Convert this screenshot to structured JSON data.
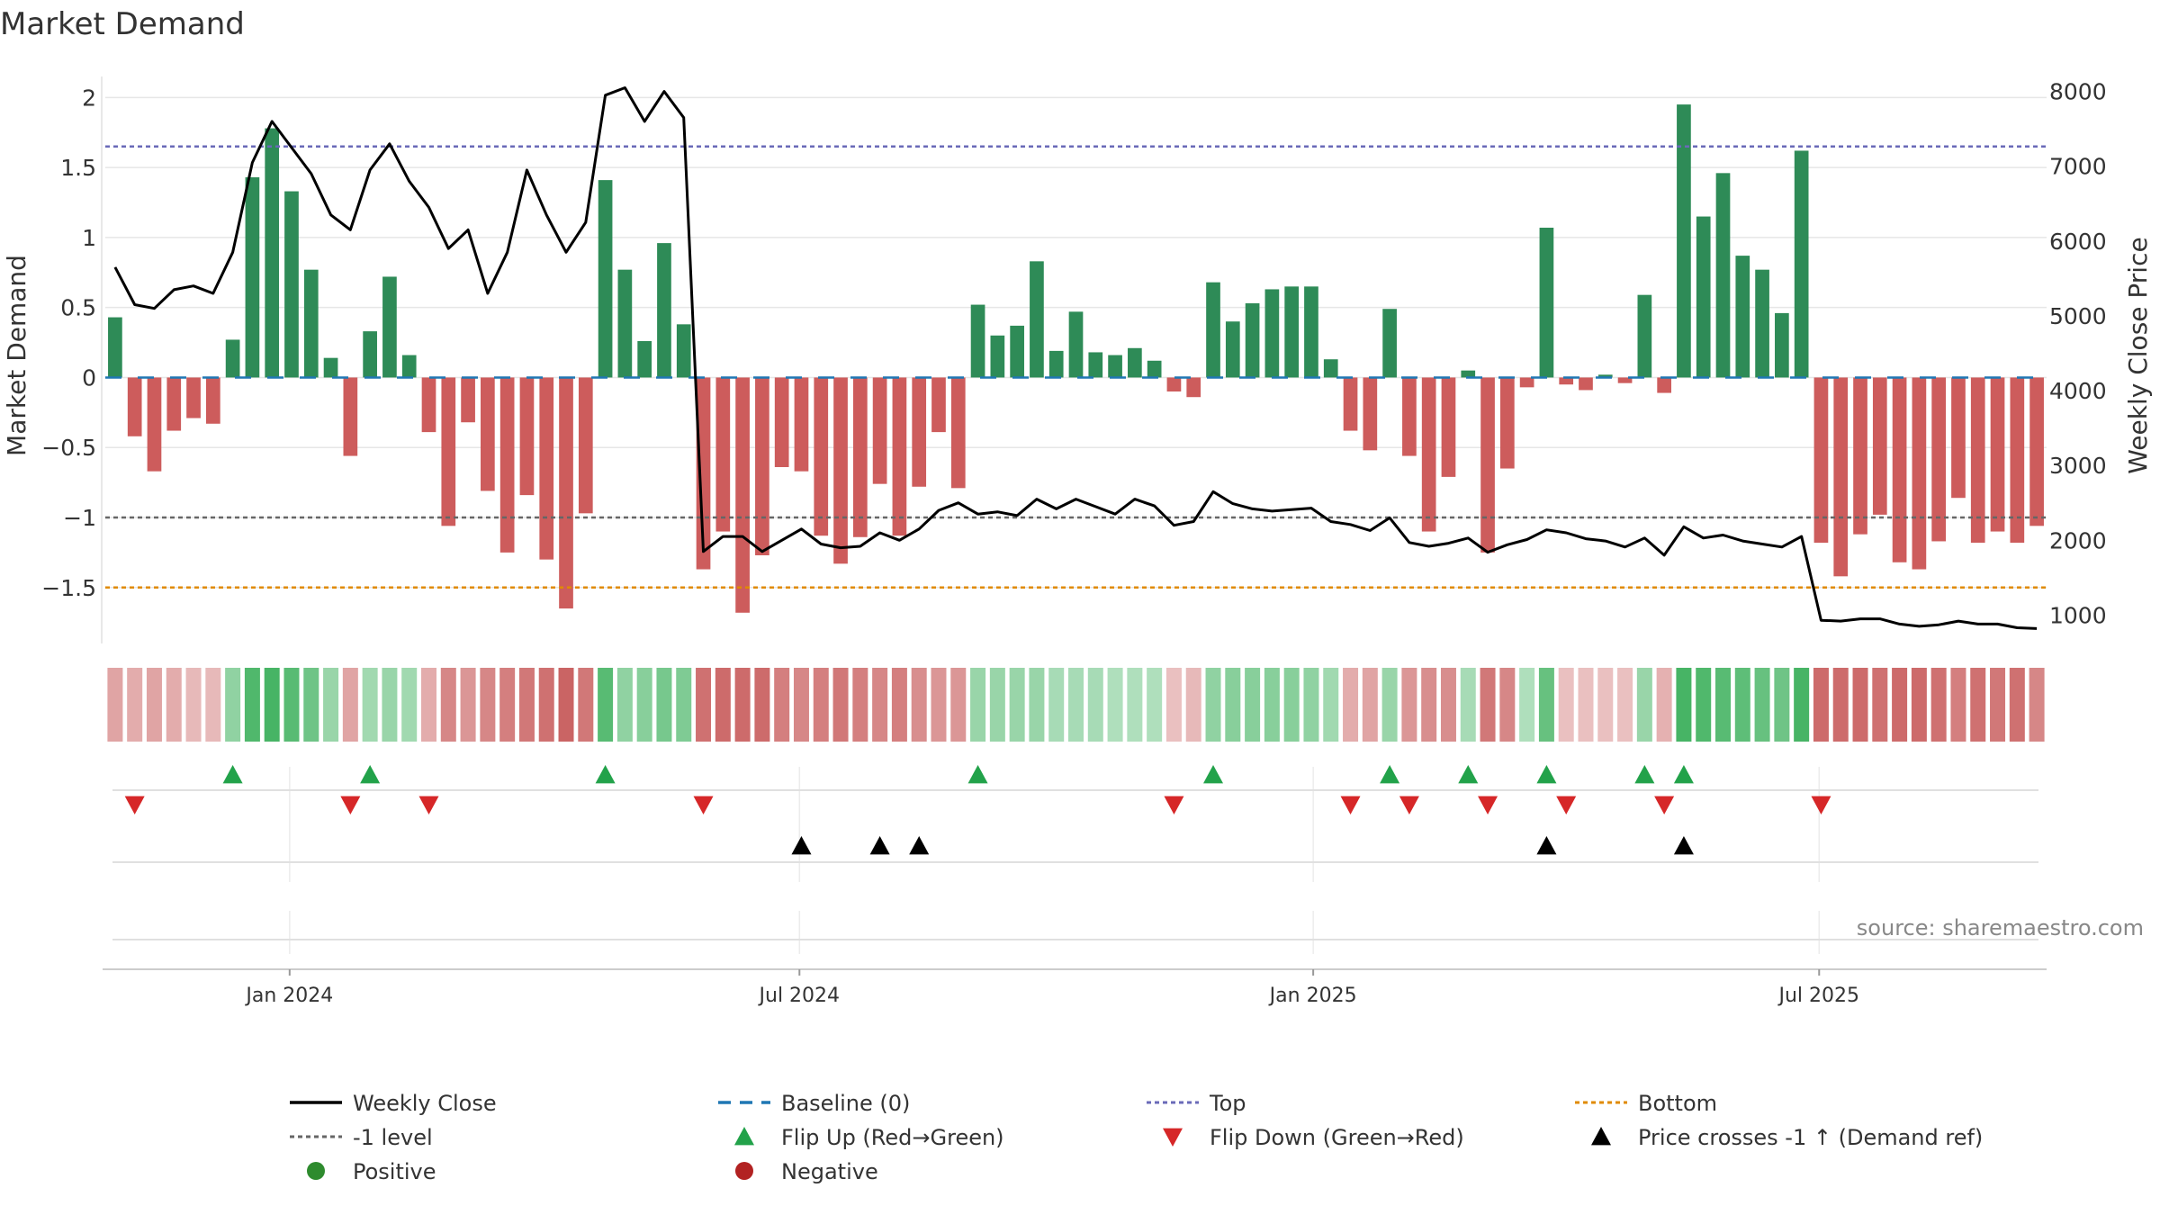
{
  "chart_data": {
    "type": "bar",
    "title": "Market Demand",
    "ylabel": "Market Demand",
    "y2label": "Weekly Close Price",
    "ylim": [
      -1.9,
      2.15
    ],
    "y2lim": [
      620,
      8200
    ],
    "yticks": [
      -1.5,
      -1,
      -0.5,
      0,
      0.5,
      1,
      1.5,
      2
    ],
    "ytick_labels": [
      "−1.5",
      "−1",
      "−0.5",
      "0",
      "0.5",
      "1",
      "1.5",
      "2"
    ],
    "y2ticks": [
      1000,
      2000,
      3000,
      4000,
      5000,
      6000,
      7000,
      8000
    ],
    "y2tick_labels": [
      "1000",
      "2000",
      "3000",
      "4000",
      "5000",
      "6000",
      "7000",
      "8000"
    ],
    "xtick_labels": [
      "Jan 2024",
      "Jul 2024",
      "Jan 2025",
      "Jul 2025"
    ],
    "xtick_weeks": [
      9.4,
      35.4,
      61.6,
      87.4
    ],
    "reference_lines": {
      "top": 1.65,
      "minus_one": -1,
      "bottom": -1.5,
      "baseline": 0
    },
    "demand": [
      0.43,
      -0.42,
      -0.67,
      -0.38,
      -0.29,
      -0.33,
      0.27,
      1.43,
      1.78,
      1.33,
      0.77,
      0.14,
      -0.56,
      0.33,
      0.72,
      0.16,
      -0.39,
      -1.06,
      -0.32,
      -0.81,
      -1.25,
      -0.84,
      -1.3,
      -1.65,
      -0.97,
      1.41,
      0.77,
      0.26,
      0.96,
      0.38,
      -1.37,
      -1.1,
      -1.68,
      -1.27,
      -0.64,
      -0.67,
      -1.13,
      -1.33,
      -1.14,
      -0.76,
      -1.13,
      -0.78,
      -0.39,
      -0.79,
      0.52,
      0.3,
      0.37,
      0.83,
      0.19,
      0.47,
      0.18,
      0.16,
      0.21,
      0.12,
      -0.1,
      -0.14,
      0.68,
      0.4,
      0.53,
      0.63,
      0.65,
      0.65,
      0.13,
      -0.38,
      -0.52,
      0.49,
      -0.56,
      -1.1,
      -0.71,
      0.05,
      -1.25,
      -0.65,
      -0.07,
      1.07,
      -0.05,
      -0.09,
      0.02,
      -0.04,
      0.59,
      -0.11,
      1.95,
      1.15,
      1.46,
      0.87,
      0.77,
      0.46,
      1.62,
      -1.18,
      -1.42,
      -1.12,
      -0.98,
      -1.32,
      -1.37,
      -1.17,
      -0.86,
      -1.18,
      -1.1,
      -1.18,
      -1.06
    ],
    "close": [
      5650,
      5150,
      5100,
      5350,
      5400,
      5300,
      5850,
      7050,
      7600,
      7250,
      6900,
      6350,
      6150,
      6950,
      7300,
      6800,
      6450,
      5900,
      6150,
      5300,
      5850,
      6950,
      6350,
      5850,
      6250,
      7950,
      8050,
      7600,
      8000,
      7650,
      1850,
      2050,
      2050,
      1850,
      2000,
      2150,
      1950,
      1900,
      1920,
      2100,
      2000,
      2150,
      2400,
      2500,
      2350,
      2380,
      2330,
      2550,
      2420,
      2550,
      2450,
      2350,
      2550,
      2460,
      2200,
      2250,
      2650,
      2490,
      2420,
      2390,
      2410,
      2430,
      2250,
      2210,
      2130,
      2300,
      1970,
      1920,
      1960,
      2030,
      1840,
      1940,
      2010,
      2140,
      2100,
      2020,
      1990,
      1910,
      2030,
      1800,
      2180,
      2030,
      2070,
      1990,
      1950,
      1910,
      2050,
      930,
      920,
      950,
      950,
      880,
      850,
      870,
      920,
      880,
      880,
      830,
      820
    ],
    "regime_strength": [
      -0.35,
      -0.3,
      -0.35,
      -0.3,
      -0.2,
      -0.2,
      0.4,
      0.8,
      0.85,
      0.75,
      0.6,
      0.35,
      -0.35,
      0.3,
      0.35,
      0.3,
      -0.3,
      -0.55,
      -0.45,
      -0.55,
      -0.6,
      -0.65,
      -0.7,
      -0.8,
      -0.65,
      0.75,
      0.4,
      0.45,
      0.55,
      0.5,
      -0.7,
      -0.75,
      -0.75,
      -0.75,
      -0.6,
      -0.55,
      -0.6,
      -0.65,
      -0.6,
      -0.55,
      -0.6,
      -0.5,
      -0.45,
      -0.45,
      0.35,
      0.35,
      0.35,
      0.35,
      0.25,
      0.25,
      0.25,
      0.2,
      0.2,
      0.2,
      -0.15,
      -0.2,
      0.4,
      0.45,
      0.45,
      0.45,
      0.45,
      0.4,
      0.3,
      -0.3,
      -0.35,
      0.35,
      -0.45,
      -0.5,
      -0.5,
      0.25,
      -0.65,
      -0.55,
      0.2,
      0.65,
      -0.15,
      -0.15,
      -0.15,
      -0.15,
      0.35,
      -0.25,
      0.85,
      0.8,
      0.75,
      0.7,
      0.65,
      0.6,
      0.85,
      -0.75,
      -0.75,
      -0.75,
      -0.7,
      -0.75,
      -0.75,
      -0.7,
      -0.6,
      -0.7,
      -0.65,
      -0.7,
      -0.55
    ],
    "flip_up_weeks": [
      6,
      13,
      25,
      44,
      56,
      65,
      69,
      73,
      78,
      80
    ],
    "flip_down_weeks": [
      1,
      12,
      16,
      30,
      54,
      63,
      66,
      70,
      74,
      79,
      87
    ],
    "price_cross_weeks": [
      35,
      39,
      41,
      73,
      80
    ],
    "colors": {
      "positive": "#2e8b57",
      "negative": "#cd5c5c",
      "close": "#000000",
      "baseline": "#1f77b4",
      "top": "#6a6ab8",
      "minus_one": "#666666",
      "bottom": "#e08a00",
      "flip_up": "#22a24a",
      "flip_down": "#d62728",
      "cross": "#000000",
      "legend_positive": "#2e8b2e",
      "legend_negative": "#b22222"
    },
    "legend": [
      {
        "label": "Weekly Close",
        "kind": "line-solid"
      },
      {
        "label": "Baseline (0)",
        "kind": "line-dash-blue"
      },
      {
        "label": "Top",
        "kind": "line-dot-purple"
      },
      {
        "label": "Bottom",
        "kind": "line-dot-orange"
      },
      {
        "label": "-1 level",
        "kind": "line-dot-gray"
      },
      {
        "label": "Flip Up (Red→Green)",
        "kind": "tri-up-green"
      },
      {
        "label": "Flip Down (Green→Red)",
        "kind": "tri-down-red"
      },
      {
        "label": "Price crosses -1 ↑ (Demand ref)",
        "kind": "tri-up-black"
      },
      {
        "label": "Positive",
        "kind": "dot-green"
      },
      {
        "label": "Negative",
        "kind": "dot-red"
      }
    ]
  },
  "source": "source: sharemaestro.com"
}
